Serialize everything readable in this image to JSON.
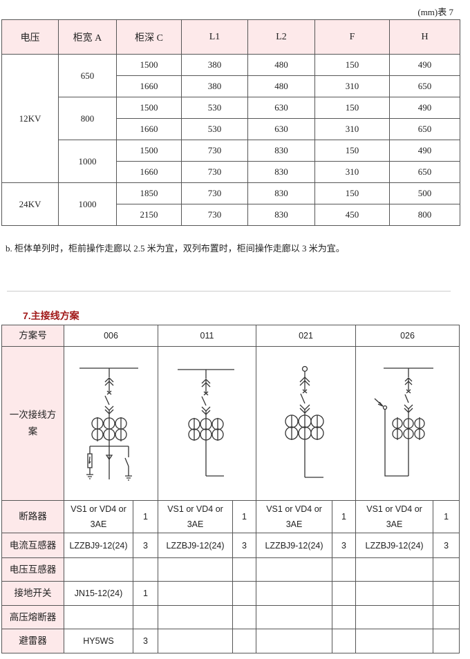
{
  "table7": {
    "caption": "(mm)表 7",
    "headers": [
      "电压",
      "柜宽 A",
      "柜深  C",
      "L1",
      "L2",
      "F",
      "H"
    ],
    "groups": [
      {
        "voltage": "12KV",
        "widths": [
          {
            "A": "650",
            "rows": [
              [
                "1500",
                "380",
                "480",
                "150",
                "490"
              ],
              [
                "1660",
                "380",
                "480",
                "310",
                "650"
              ]
            ]
          },
          {
            "A": "800",
            "rows": [
              [
                "1500",
                "530",
                "630",
                "150",
                "490"
              ],
              [
                "1660",
                "530",
                "630",
                "310",
                "650"
              ]
            ]
          },
          {
            "A": "1000",
            "rows": [
              [
                "1500",
                "730",
                "830",
                "150",
                "490"
              ],
              [
                "1660",
                "730",
                "830",
                "310",
                "650"
              ]
            ]
          }
        ]
      },
      {
        "voltage": "24KV",
        "widths": [
          {
            "A": "1000",
            "rows": [
              [
                "1850",
                "730",
                "830",
                "150",
                "500"
              ],
              [
                "2150",
                "730",
                "830",
                "450",
                "800"
              ]
            ]
          }
        ]
      }
    ]
  },
  "note": "b. 柜体单列时，柜前操作走廊以 2.5 米为宜，双列布置时，柜间操作走廊以 3 米为宜。",
  "section_title": "7.主接线方案",
  "scheme_table": {
    "header_label": "方案号",
    "schemes": [
      "006",
      "011",
      "021",
      "026"
    ],
    "diagram_label": "一次接线方案",
    "rows": [
      {
        "label": "断路器",
        "cells": [
          [
            "VS1 or VD4 or 3AE",
            "1"
          ],
          [
            "VS1 or VD4 or 3AE",
            "1"
          ],
          [
            "VS1 or VD4 or 3AE",
            "1"
          ],
          [
            "VS1 or VD4 or 3AE",
            "1"
          ]
        ]
      },
      {
        "label": "电流互感器",
        "cells": [
          [
            "LZZBJ9-12(24)",
            "3"
          ],
          [
            "LZZBJ9-12(24)",
            "3"
          ],
          [
            "LZZBJ9-12(24)",
            "3"
          ],
          [
            "LZZBJ9-12(24)",
            "3"
          ]
        ]
      },
      {
        "label": "电压互感器",
        "cells": [
          [
            "",
            ""
          ],
          [
            "",
            ""
          ],
          [
            "",
            ""
          ],
          [
            "",
            ""
          ]
        ]
      },
      {
        "label": "接地开关",
        "cells": [
          [
            "JN15-12(24)",
            "1"
          ],
          [
            "",
            ""
          ],
          [
            "",
            ""
          ],
          [
            "",
            ""
          ]
        ]
      },
      {
        "label": "高压熔断器",
        "cells": [
          [
            "",
            ""
          ],
          [
            "",
            ""
          ],
          [
            "",
            ""
          ],
          [
            "",
            ""
          ]
        ]
      },
      {
        "label": "避雷器",
        "cells": [
          [
            "HY5WS",
            "3"
          ],
          [
            "",
            ""
          ],
          [
            "",
            ""
          ],
          [
            "",
            ""
          ]
        ]
      }
    ]
  },
  "colors": {
    "header_bg": "#fde9ea",
    "section_title": "#a01818"
  }
}
